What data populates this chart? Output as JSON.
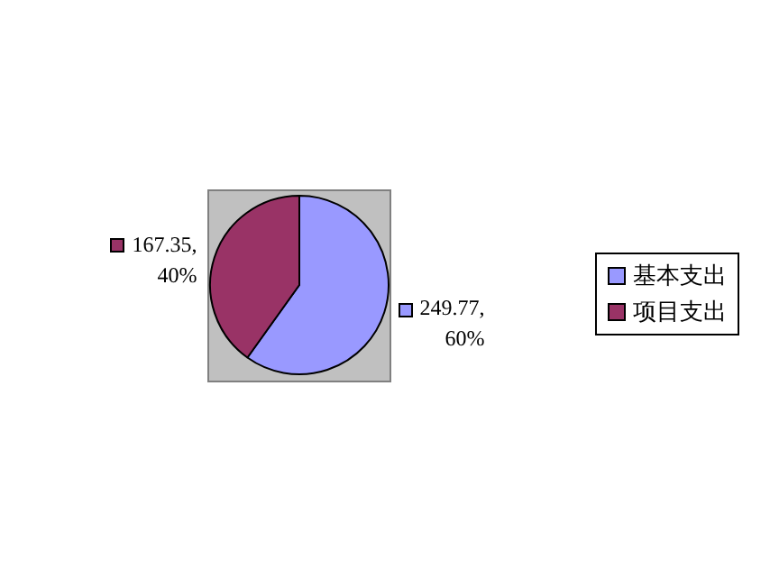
{
  "chart_data": {
    "type": "pie",
    "categories": [
      "基本支出",
      "项目支出"
    ],
    "values": [
      249.77,
      167.35
    ],
    "colors": [
      "#9999ff",
      "#993366"
    ],
    "value_labels": [
      "249.77,\n60%",
      "167.35,\n40%"
    ],
    "legend": "right"
  }
}
